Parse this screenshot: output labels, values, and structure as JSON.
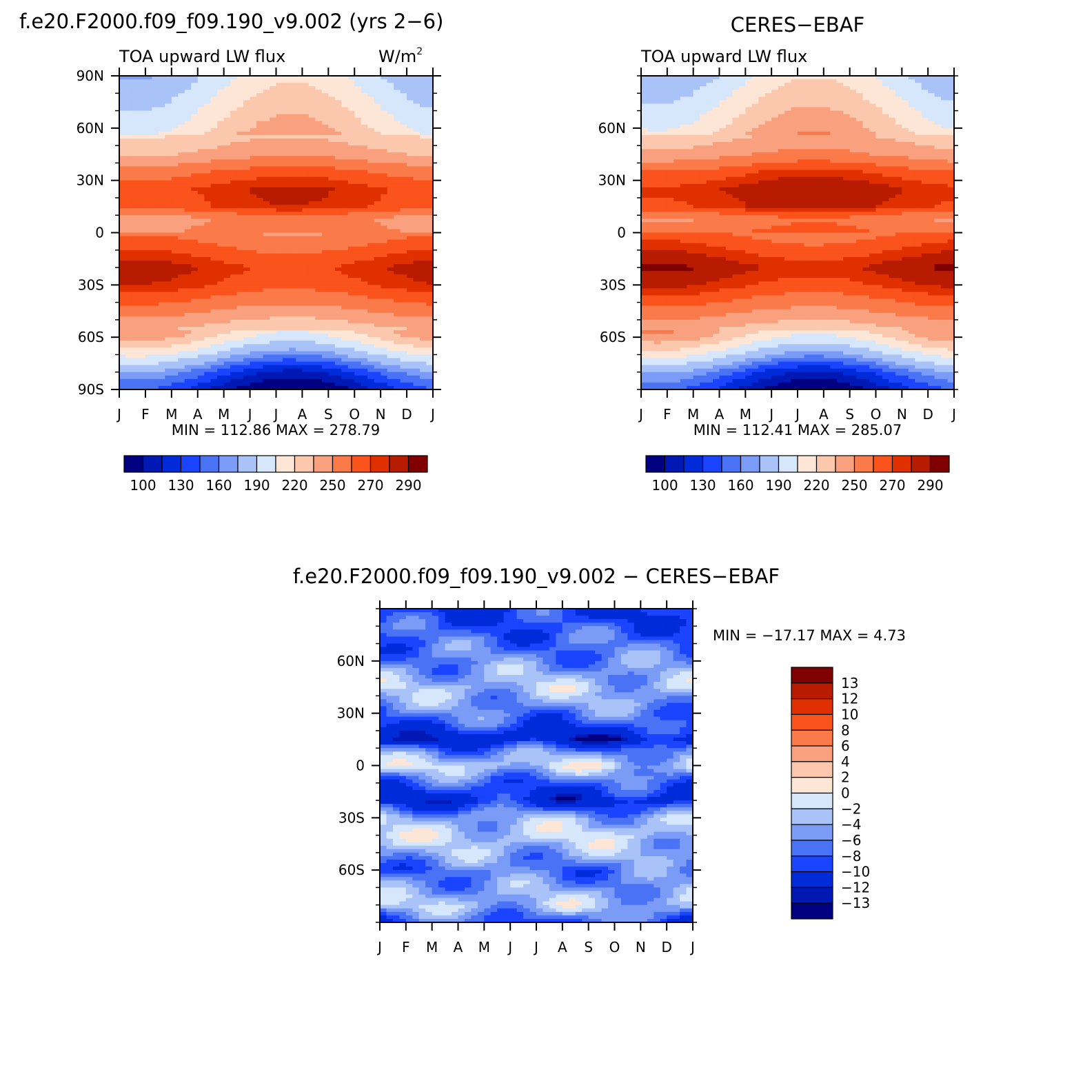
{
  "palette": {
    "blues": [
      "#000080",
      "#0018b4",
      "#002bd9",
      "#1a44ff",
      "#4a72f5",
      "#7a9cf7",
      "#a9c3f9",
      "#d6e6fb"
    ],
    "reds": [
      "#fde6d6",
      "#fbc8ad",
      "#f9a17f",
      "#fa7a4a",
      "#fb531c",
      "#e03000",
      "#b71c00",
      "#800000"
    ]
  },
  "panels": {
    "model": {
      "title": "f.e20.F2000.f09_f09.190_v9.002 (yrs 2−6)",
      "left_string": "TOA upward LW flux",
      "right_string": "W/m",
      "right_string_sup": "2",
      "stats": "MIN = 112.86 MAX = 278.79"
    },
    "obs": {
      "title": "CERES−EBAF",
      "left_string": "TOA upward LW flux",
      "stats": "MIN = 112.41  MAX = 285.07"
    },
    "diff": {
      "title": "f.e20.F2000.f09_f09.190_v9.002 − CERES−EBAF",
      "stats": "MIN = −17.17 MAX =    4.73"
    }
  },
  "chart_data": [
    {
      "type": "heatmap",
      "title": "f.e20.F2000.f09_f09.190_v9.002 (yrs 2−6)",
      "subtitle_left": "TOA upward LW flux",
      "units": "W/m2",
      "x_ticks": [
        "J",
        "F",
        "M",
        "A",
        "M",
        "J",
        "J",
        "A",
        "S",
        "O",
        "N",
        "D",
        "J"
      ],
      "y_tick_labels": [
        "90N",
        "60N",
        "30N",
        "0",
        "30S",
        "60S",
        "90S"
      ],
      "y_tick_values": [
        90,
        60,
        30,
        0,
        -30,
        -60,
        -90
      ],
      "ylim": [
        -90,
        90
      ],
      "colorbar_labels": [
        "100",
        "130",
        "160",
        "190",
        "220",
        "250",
        "270",
        "290"
      ],
      "zmin": 112.86,
      "zmax": 278.79,
      "lat_profile": {
        "lat": [
          90,
          75,
          60,
          45,
          35,
          25,
          15,
          8,
          0,
          -10,
          -20,
          -30,
          -40,
          -50,
          -60,
          -70,
          -80,
          -90
        ],
        "value": [
          180,
          192,
          205,
          225,
          250,
          265,
          262,
          235,
          240,
          255,
          268,
          262,
          245,
          225,
          205,
          172,
          138,
          118
        ]
      }
    },
    {
      "type": "heatmap",
      "title": "CERES−EBAF",
      "subtitle_left": "TOA upward LW flux",
      "x_ticks": [
        "J",
        "F",
        "M",
        "A",
        "M",
        "J",
        "J",
        "A",
        "S",
        "O",
        "N",
        "D",
        "J"
      ],
      "y_tick_labels": [
        "60N",
        "30N",
        "0",
        "30S",
        "60S"
      ],
      "y_tick_values": [
        60,
        30,
        0,
        -30,
        -60
      ],
      "ylim": [
        -90,
        90
      ],
      "colorbar_labels": [
        "100",
        "130",
        "160",
        "190",
        "220",
        "250",
        "270",
        "290"
      ],
      "zmin": 112.41,
      "zmax": 285.07,
      "lat_profile": {
        "lat": [
          90,
          75,
          60,
          45,
          35,
          25,
          15,
          8,
          0,
          -10,
          -20,
          -30,
          -40,
          -50,
          -60,
          -70,
          -80,
          -90
        ],
        "value": [
          182,
          196,
          210,
          232,
          258,
          272,
          268,
          240,
          248,
          262,
          275,
          265,
          248,
          228,
          208,
          175,
          140,
          120
        ]
      }
    },
    {
      "type": "heatmap",
      "title": "f.e20.F2000.f09_f09.190_v9.002 − CERES−EBAF",
      "x_ticks": [
        "J",
        "F",
        "M",
        "A",
        "M",
        "J",
        "J",
        "A",
        "S",
        "O",
        "N",
        "D",
        "J"
      ],
      "y_tick_labels": [
        "60N",
        "30N",
        "0",
        "30S",
        "60S"
      ],
      "y_tick_values": [
        60,
        30,
        0,
        -30,
        -60
      ],
      "ylim": [
        -90,
        90
      ],
      "colorbar_labels": [
        "13",
        "12",
        "10",
        "8",
        "6",
        "4",
        "2",
        "0",
        "−2",
        "−4",
        "−6",
        "−8",
        "−10",
        "−12",
        "−13"
      ],
      "zmin": -17.17,
      "zmax": 4.73,
      "lat_profile": {
        "lat": [
          90,
          75,
          60,
          45,
          35,
          25,
          15,
          8,
          0,
          -10,
          -20,
          -30,
          -40,
          -50,
          -60,
          -70,
          -80,
          -90
        ],
        "value": [
          -8,
          -6,
          -4,
          -1,
          -3,
          -6,
          -11,
          -4,
          0,
          -6,
          -10,
          -2,
          0,
          -2,
          -5,
          -3,
          -1,
          -6
        ]
      }
    }
  ]
}
